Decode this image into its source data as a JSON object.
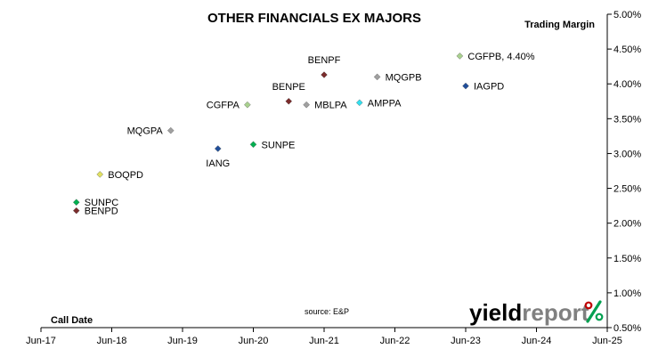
{
  "chart_data": {
    "type": "scatter",
    "title": "OTHER FINANCIALS EX MAJORS",
    "xlabel": "Call Date",
    "ylabel": "Trading Margin",
    "x_ticks": [
      "Jun-17",
      "Jun-18",
      "Jun-19",
      "Jun-20",
      "Jun-21",
      "Jun-22",
      "Jun-23",
      "Jun-24",
      "Jun-25"
    ],
    "y_ticks": [
      "0.50%",
      "1.00%",
      "1.50%",
      "2.00%",
      "2.50%",
      "3.00%",
      "3.50%",
      "4.00%",
      "4.50%",
      "5.00%"
    ],
    "xlim": [
      "2017-06",
      "2025-06"
    ],
    "ylim": [
      0.5,
      5.0
    ],
    "y_axis_position": "right",
    "grid": false,
    "legend": "none",
    "points": [
      {
        "label": "SUNPC",
        "x": "2017-12",
        "y": 2.3,
        "color": "#00B050",
        "label_pos": "right"
      },
      {
        "label": "BENPD",
        "x": "2017-12",
        "y": 2.18,
        "color": "#7B2C2C",
        "label_pos": "right"
      },
      {
        "label": "BOQPD",
        "x": "2018-04",
        "y": 2.7,
        "color": "#E0E060",
        "label_pos": "right"
      },
      {
        "label": "MQGPA",
        "x": "2019-04",
        "y": 3.33,
        "color": "#A0A0A0",
        "label_pos": "left"
      },
      {
        "label": "IANG",
        "x": "2019-12",
        "y": 3.07,
        "color": "#1F4E9A",
        "label_pos": "below"
      },
      {
        "label": "SUNPE",
        "x": "2020-06",
        "y": 3.13,
        "color": "#00B050",
        "label_pos": "right"
      },
      {
        "label": "CGFPA",
        "x": "2020-05",
        "y": 3.7,
        "color": "#A9D18E",
        "label_pos": "left"
      },
      {
        "label": "BENPE",
        "x": "2020-12",
        "y": 3.75,
        "color": "#7B2C2C",
        "label_pos": "above"
      },
      {
        "label": "MBLPA",
        "x": "2021-03",
        "y": 3.7,
        "color": "#A0A0A0",
        "label_pos": "right"
      },
      {
        "label": "BENPF",
        "x": "2021-06",
        "y": 4.13,
        "color": "#7B2C2C",
        "label_pos": "above"
      },
      {
        "label": "AMPPA",
        "x": "2021-12",
        "y": 3.73,
        "color": "#33E0F0",
        "label_pos": "right"
      },
      {
        "label": "MQGPB",
        "x": "2022-03",
        "y": 4.1,
        "color": "#A0A0A0",
        "label_pos": "right"
      },
      {
        "label": "CGFPB, 4.40%",
        "x": "2023-05",
        "y": 4.4,
        "color": "#A9D18E",
        "label_pos": "right"
      },
      {
        "label": "IAGPD",
        "x": "2023-06",
        "y": 3.97,
        "color": "#1F4E9A",
        "label_pos": "right"
      }
    ]
  },
  "source_note": "source: E&P",
  "logo": {
    "word1": "yield",
    "word2": "report",
    "symbol": "%",
    "color1": "#000000",
    "color2": "#808080",
    "symbol_colors": [
      "#C00000",
      "#00A050"
    ]
  }
}
